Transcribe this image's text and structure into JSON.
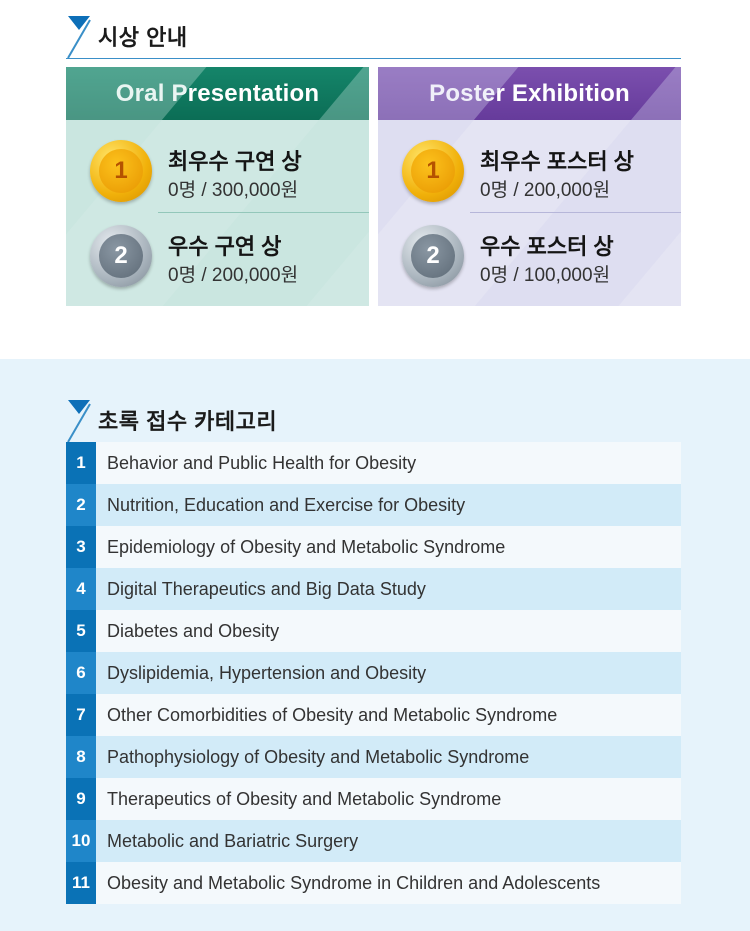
{
  "awards_section": {
    "title": "시상 안내",
    "oral": {
      "heading": "Oral Presentation",
      "items": [
        {
          "rank": "1",
          "name": "최우수 구연 상",
          "detail": "0명  /  300,000원"
        },
        {
          "rank": "2",
          "name": "우수 구연 상",
          "detail": "0명  /  200,000원"
        }
      ]
    },
    "poster": {
      "heading": "Poster Exhibition",
      "items": [
        {
          "rank": "1",
          "name": "최우수 포스터 상",
          "detail": "0명  /  200,000원"
        },
        {
          "rank": "2",
          "name": "우수 포스터 상",
          "detail": "0명  /  100,000원"
        }
      ]
    }
  },
  "categories_section": {
    "title": "초록 접수 카테고리",
    "items": [
      {
        "num": "1",
        "label": "Behavior and Public Health for Obesity"
      },
      {
        "num": "2",
        "label": "Nutrition, Education and Exercise for Obesity"
      },
      {
        "num": "3",
        "label": "Epidemiology of Obesity and Metabolic Syndrome"
      },
      {
        "num": "4",
        "label": "Digital Therapeutics and Big Data Study"
      },
      {
        "num": "5",
        "label": "Diabetes and Obesity"
      },
      {
        "num": "6",
        "label": "Dyslipidemia, Hypertension and Obesity"
      },
      {
        "num": "7",
        "label": "Other Comorbidities of Obesity and Metabolic Syndrome"
      },
      {
        "num": "8",
        "label": "Pathophysiology of Obesity and Metabolic Syndrome"
      },
      {
        "num": "9",
        "label": "Therapeutics of Obesity and Metabolic Syndrome"
      },
      {
        "num": "10",
        "label": "Metabolic and Bariatric Surgery"
      },
      {
        "num": "11",
        "label": "Obesity and Metabolic Syndrome in Children and Adolescents"
      }
    ]
  },
  "colors": {
    "oral_accent": "#0b6d55",
    "poster_accent": "#663b9b",
    "category_number_bg": "#0a72b6",
    "heading_rule": "#3a8fc8"
  }
}
